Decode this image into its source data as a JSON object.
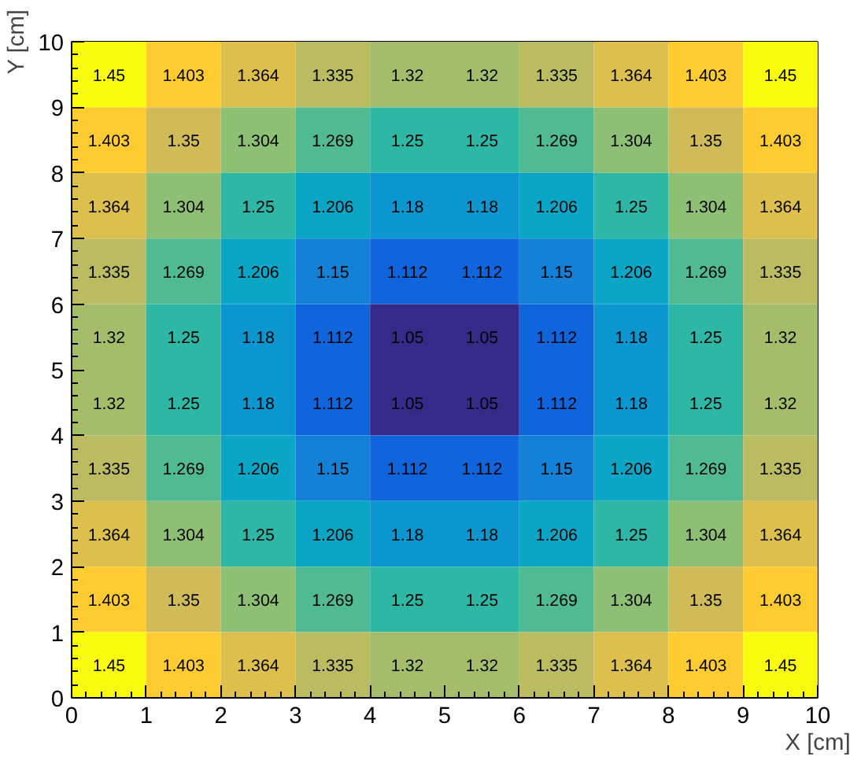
{
  "chart_data": {
    "type": "heatmap",
    "xlabel": "X [cm]",
    "ylabel": "Y [cm]",
    "xlim": [
      0,
      10
    ],
    "ylim": [
      0,
      10
    ],
    "xticks": [
      0,
      1,
      2,
      3,
      4,
      5,
      6,
      7,
      8,
      9,
      10
    ],
    "yticks": [
      0,
      1,
      2,
      3,
      4,
      5,
      6,
      7,
      8,
      9,
      10
    ],
    "data_labels": true,
    "grid": false,
    "cells": [
      [
        1.45,
        1.403,
        1.364,
        1.335,
        1.32,
        1.32,
        1.335,
        1.364,
        1.403,
        1.45
      ],
      [
        1.403,
        1.35,
        1.304,
        1.269,
        1.25,
        1.25,
        1.269,
        1.304,
        1.35,
        1.403
      ],
      [
        1.364,
        1.304,
        1.25,
        1.206,
        1.18,
        1.18,
        1.206,
        1.25,
        1.304,
        1.364
      ],
      [
        1.335,
        1.269,
        1.206,
        1.15,
        1.112,
        1.112,
        1.15,
        1.206,
        1.269,
        1.335
      ],
      [
        1.32,
        1.25,
        1.18,
        1.112,
        1.05,
        1.05,
        1.112,
        1.18,
        1.25,
        1.32
      ],
      [
        1.32,
        1.25,
        1.18,
        1.112,
        1.05,
        1.05,
        1.112,
        1.18,
        1.25,
        1.32
      ],
      [
        1.335,
        1.269,
        1.206,
        1.15,
        1.112,
        1.112,
        1.15,
        1.206,
        1.269,
        1.335
      ],
      [
        1.364,
        1.304,
        1.25,
        1.206,
        1.18,
        1.18,
        1.206,
        1.25,
        1.304,
        1.364
      ],
      [
        1.403,
        1.35,
        1.304,
        1.269,
        1.25,
        1.25,
        1.269,
        1.304,
        1.35,
        1.403
      ],
      [
        1.45,
        1.403,
        1.364,
        1.335,
        1.32,
        1.32,
        1.335,
        1.364,
        1.403,
        1.45
      ]
    ]
  }
}
